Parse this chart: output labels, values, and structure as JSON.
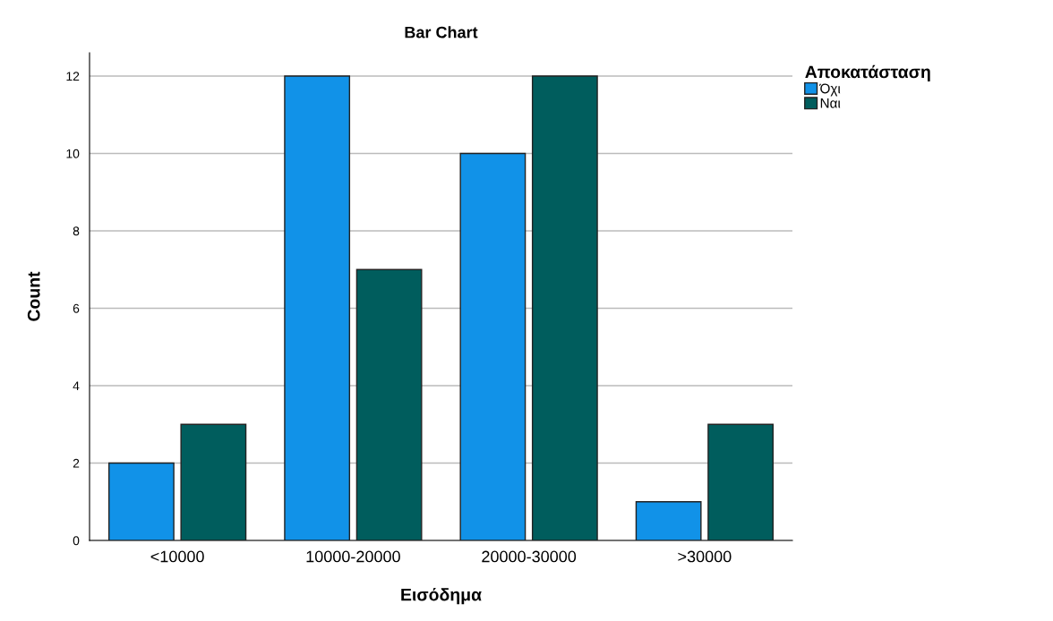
{
  "chart_data": {
    "type": "bar",
    "title": "Bar Chart",
    "xlabel": "Εισόδημα",
    "ylabel": "Count",
    "legend_title": "Αποκατάσταση",
    "categories": [
      "<10000",
      "10000-20000",
      "20000-30000",
      ">30000"
    ],
    "series": [
      {
        "name": "Όχι",
        "color": "#1192e8",
        "values": [
          2,
          12,
          10,
          1
        ]
      },
      {
        "name": "Ναι",
        "color": "#005d5d",
        "values": [
          3,
          7,
          12,
          3
        ]
      }
    ],
    "ylim": [
      0,
      12.6
    ],
    "yticks": [
      0,
      2,
      4,
      6,
      8,
      10,
      12
    ],
    "grid": "y",
    "legend": "top right"
  }
}
